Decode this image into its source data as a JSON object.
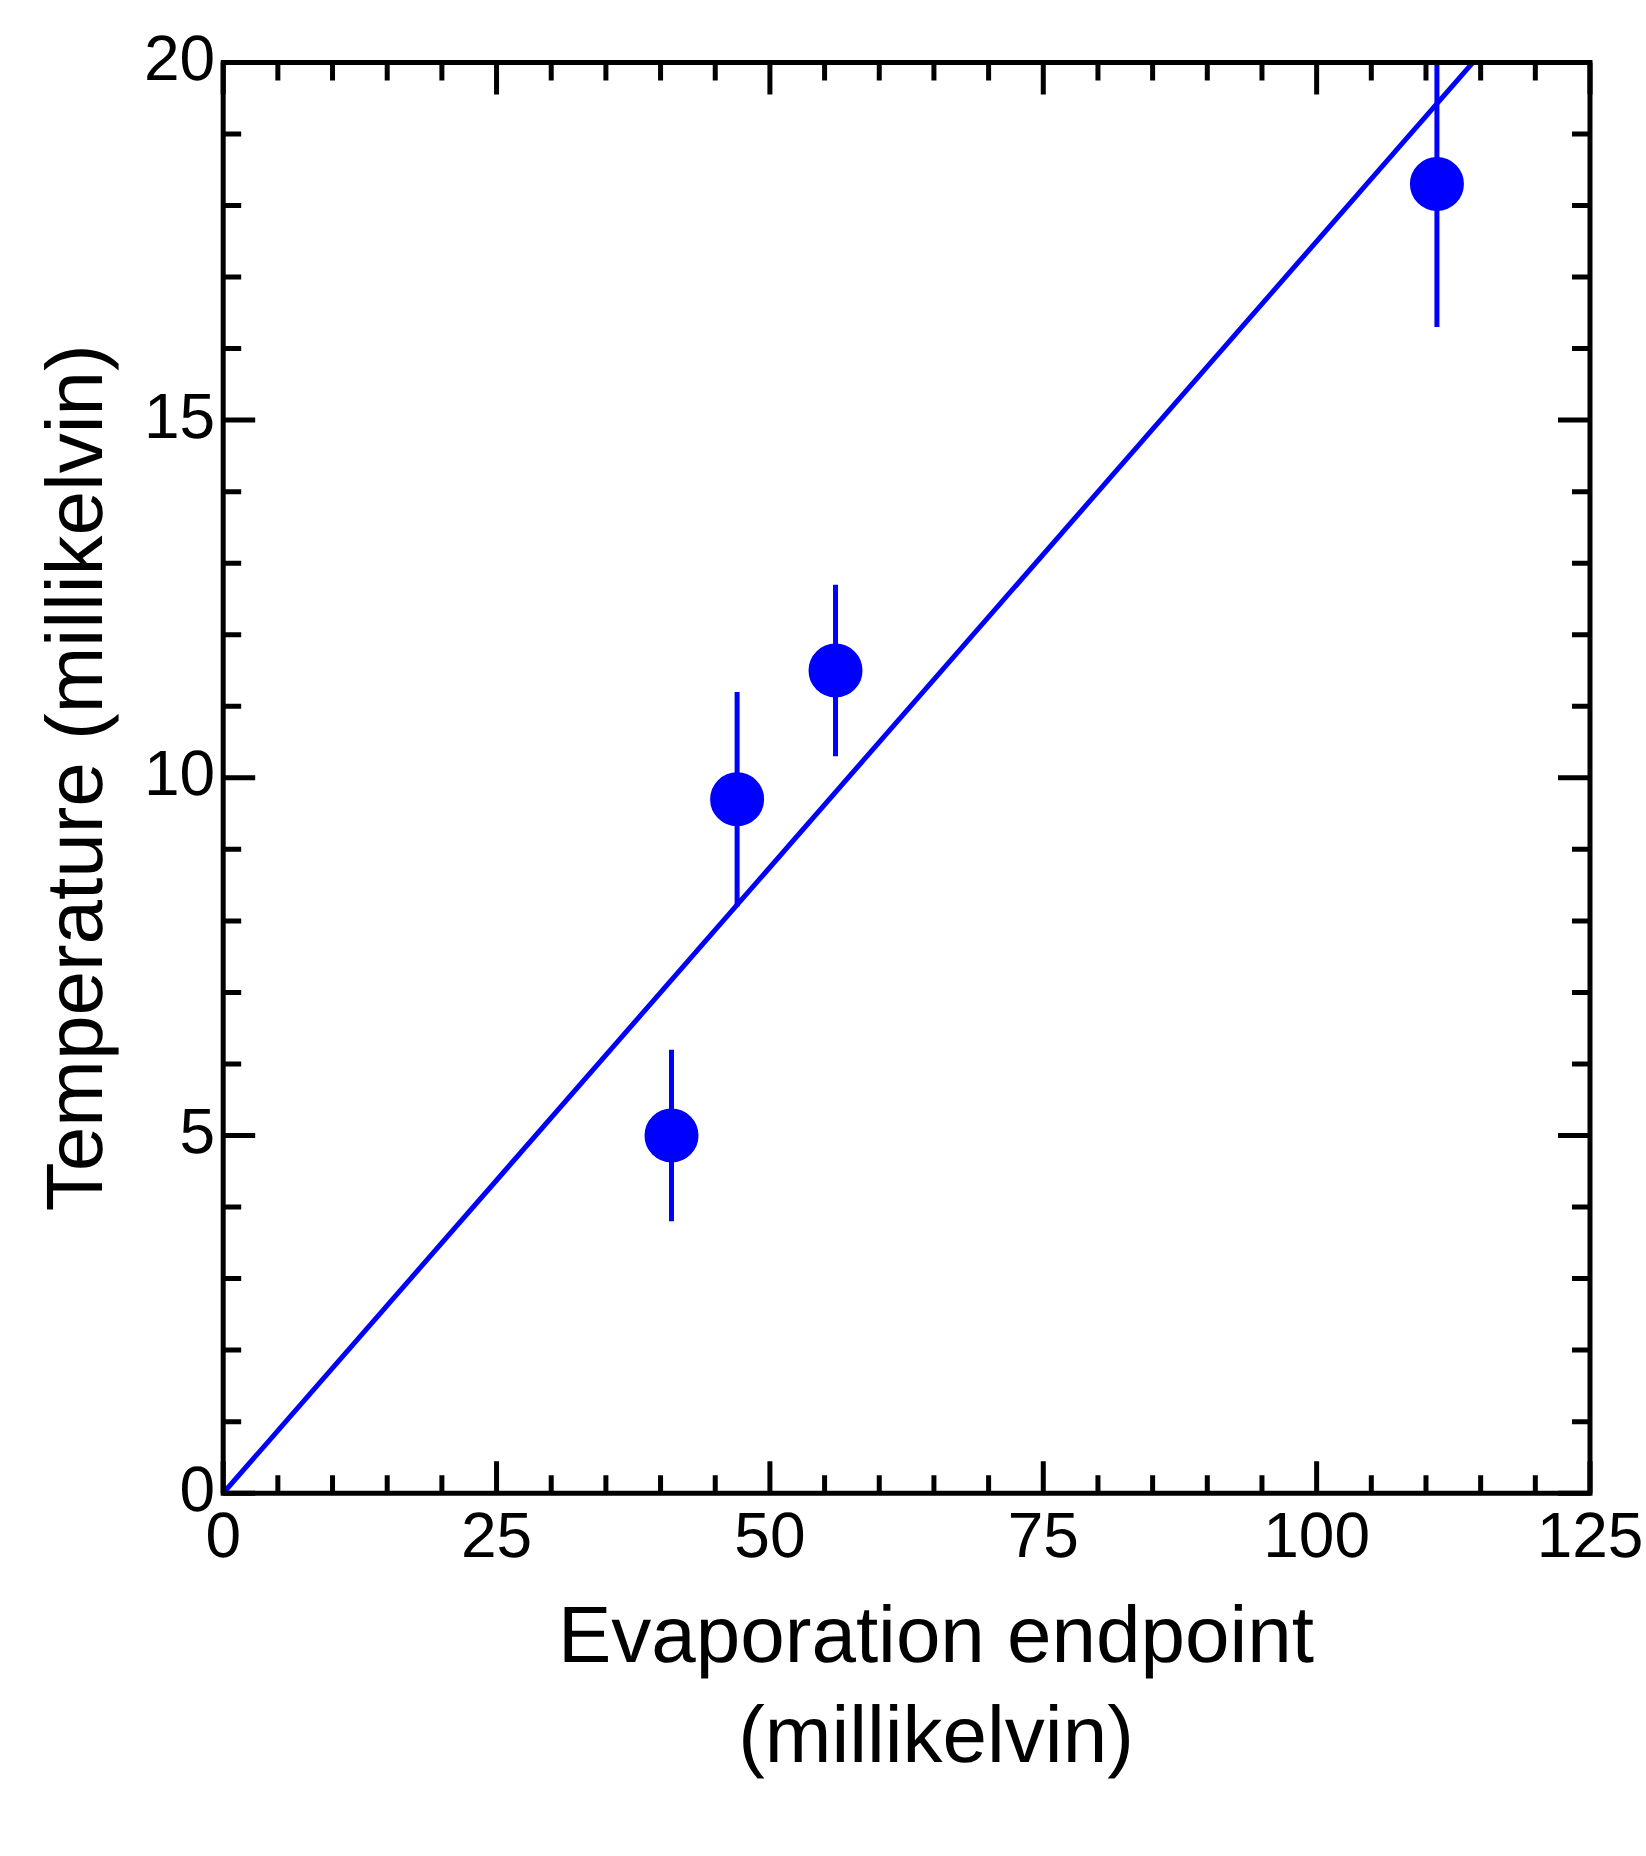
{
  "chart_data": {
    "type": "scatter",
    "xlabel": "Evaporation endpoint (millikelvin)",
    "ylabel": "Temperature (millikelvin)",
    "xlim": [
      0,
      125
    ],
    "ylim": [
      0,
      20
    ],
    "xticks": [
      0,
      {
        "value": 5,
        "label": null
      },
      {
        "value": 10,
        "label": null
      },
      {
        "value": 15,
        "label": null
      },
      {
        "value": 20,
        "label": null
      },
      25,
      {
        "value": 30,
        "label": null
      },
      {
        "value": 35,
        "label": null
      },
      {
        "value": 40,
        "label": null
      },
      {
        "value": 45,
        "label": null
      },
      50,
      {
        "value": 55,
        "label": null
      },
      {
        "value": 60,
        "label": null
      },
      {
        "value": 65,
        "label": null
      },
      {
        "value": 70,
        "label": null
      },
      75,
      {
        "value": 80,
        "label": null
      },
      {
        "value": 85,
        "label": null
      },
      {
        "value": 90,
        "label": null
      },
      {
        "value": 95,
        "label": null
      },
      100,
      {
        "value": 105,
        "label": null
      },
      {
        "value": 110,
        "label": null
      },
      {
        "value": 115,
        "label": null
      },
      {
        "value": 120,
        "label": null
      },
      125
    ],
    "yticks": [
      0,
      {
        "value": 1,
        "label": null
      },
      {
        "value": 2,
        "label": null
      },
      {
        "value": 3,
        "label": null
      },
      {
        "value": 4,
        "label": null
      },
      5,
      {
        "value": 6,
        "label": null
      },
      {
        "value": 7,
        "label": null
      },
      {
        "value": 8,
        "label": null
      },
      {
        "value": 9,
        "label": null
      },
      10,
      {
        "value": 11,
        "label": null
      },
      {
        "value": 12,
        "label": null
      },
      {
        "value": 13,
        "label": null
      },
      {
        "value": 14,
        "label": null
      },
      15,
      {
        "value": 16,
        "label": null
      },
      {
        "value": 17,
        "label": null
      },
      {
        "value": 18,
        "label": null
      },
      {
        "value": 19,
        "label": null
      },
      20
    ],
    "grid": false,
    "legend": false,
    "marker": "circle",
    "series": [
      {
        "type": "scatter",
        "color": "#0000ff",
        "x": [
          41,
          47,
          56,
          111
        ],
        "values": [
          5.0,
          9.7,
          11.5,
          18.3
        ],
        "errors": [
          1.2,
          1.5,
          1.2,
          [
            16.3,
            20.0
          ]
        ]
      },
      {
        "type": "line",
        "color": "#0000ff",
        "x": [
          0,
          114.3
        ],
        "values": [
          0,
          20
        ],
        "marker": "none",
        "line_style": "solid"
      }
    ]
  }
}
